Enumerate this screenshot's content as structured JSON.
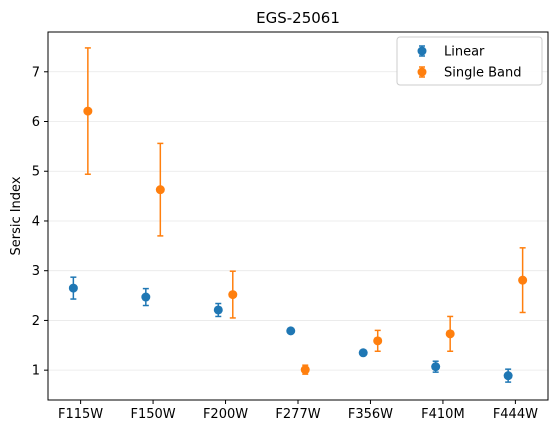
{
  "chart_data": {
    "type": "scatter",
    "title": "EGS-25061",
    "xlabel": "",
    "ylabel": "Sersic Index",
    "categories": [
      "F115W",
      "F150W",
      "F200W",
      "F277W",
      "F356W",
      "F410M",
      "F444W"
    ],
    "yticks": [
      1,
      2,
      3,
      4,
      5,
      6,
      7
    ],
    "ylim": [
      0.4,
      7.8
    ],
    "grid": "horizontal",
    "legend_position": "top-right",
    "series": [
      {
        "name": "Linear",
        "color": "#1f77b4",
        "offset": -0.1,
        "values": [
          2.65,
          2.47,
          2.21,
          1.79,
          1.35,
          1.07,
          0.89
        ],
        "err_low": [
          0.22,
          0.17,
          0.13,
          0.04,
          0.04,
          0.11,
          0.13
        ],
        "err_high": [
          0.22,
          0.17,
          0.13,
          0.04,
          0.04,
          0.11,
          0.13
        ]
      },
      {
        "name": "Single Band",
        "color": "#ff7f0e",
        "offset": 0.1,
        "values": [
          6.21,
          4.63,
          2.52,
          1.01,
          1.59,
          1.73,
          2.81
        ],
        "err_low": [
          1.27,
          0.93,
          0.47,
          0.09,
          0.21,
          0.35,
          0.65
        ],
        "err_high": [
          1.27,
          0.93,
          0.47,
          0.09,
          0.21,
          0.35,
          0.65
        ]
      }
    ]
  }
}
